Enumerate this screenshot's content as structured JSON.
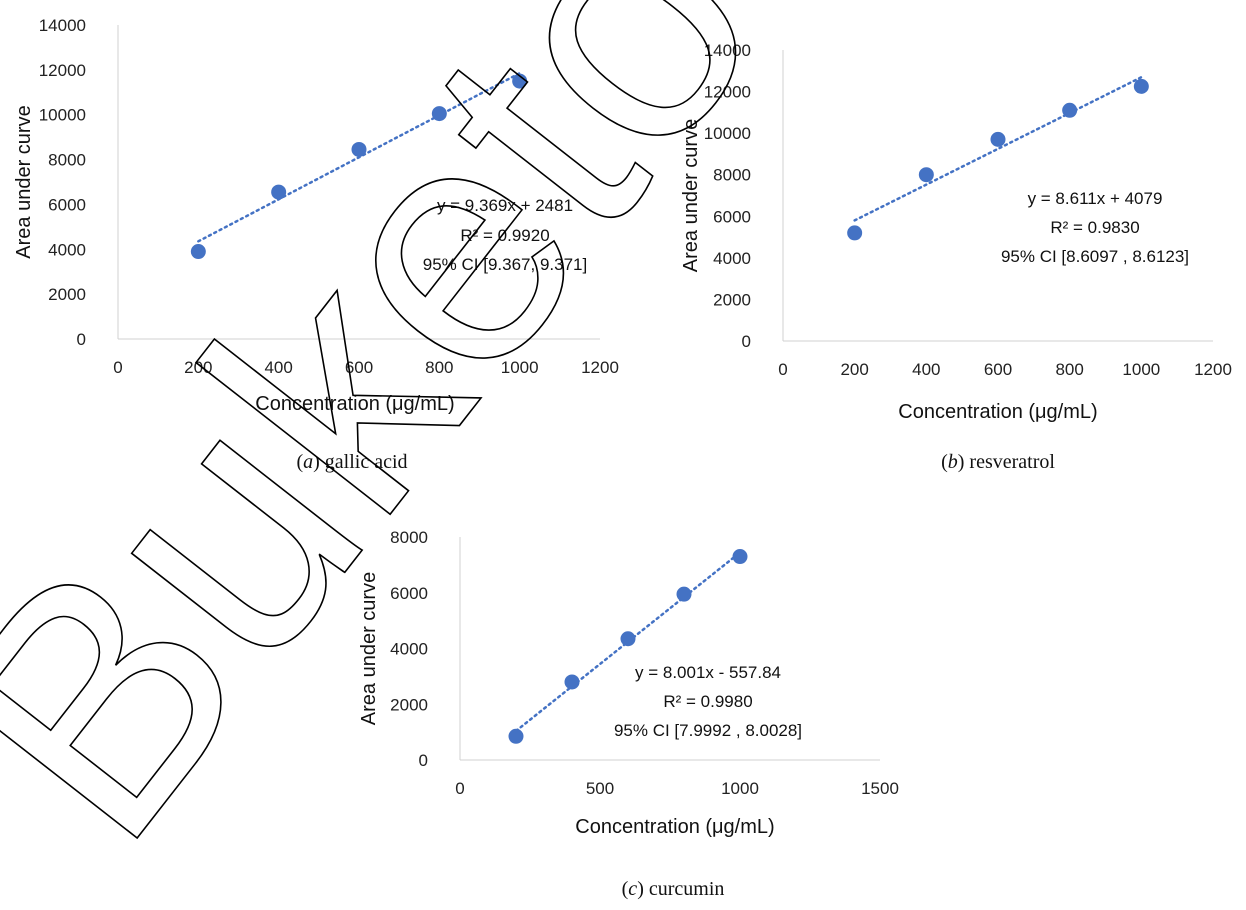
{
  "watermark": "Buketov Uni",
  "colors": {
    "point": "#4472C4",
    "trend": "#4472C4",
    "axis": "#d0d0d0"
  },
  "chart_data": [
    {
      "type": "scatter",
      "xlabel": "Concentration (μg/mL)",
      "ylabel": "Area under curve",
      "xlim": [
        0,
        1200
      ],
      "ylim": [
        0,
        14000
      ],
      "xticks": [
        0,
        200,
        400,
        600,
        800,
        1000,
        1200
      ],
      "yticks": [
        0,
        2000,
        4000,
        6000,
        8000,
        10000,
        12000,
        14000
      ],
      "x": [
        200,
        400,
        600,
        800,
        1000
      ],
      "y": [
        3900,
        6550,
        8450,
        10050,
        11500
      ],
      "trendline": {
        "slope": 9.369,
        "intercept": 2481
      },
      "annotation": [
        "y = 9.369x + 2481",
        "R² = 0.9920",
        "95% CI [9.367, 9.371]"
      ],
      "caption_letter": "a",
      "caption_text": "gallic acid",
      "grid": false
    },
    {
      "type": "scatter",
      "xlabel": "Concentration (μg/mL)",
      "ylabel": "Area under curve",
      "xlim": [
        0,
        1200
      ],
      "ylim": [
        0,
        14000
      ],
      "xticks": [
        0,
        200,
        400,
        600,
        800,
        1000,
        1200
      ],
      "yticks": [
        0,
        2000,
        4000,
        6000,
        8000,
        10000,
        12000,
        14000
      ],
      "x": [
        200,
        400,
        600,
        800,
        1000
      ],
      "y": [
        5200,
        8000,
        9700,
        11100,
        12250
      ],
      "trendline": {
        "slope": 8.611,
        "intercept": 4079
      },
      "annotation": [
        "y = 8.611x + 4079",
        "R² = 0.9830",
        "95% CI [8.6097 , 8.6123]"
      ],
      "caption_letter": "b",
      "caption_text": "resveratrol",
      "grid": false
    },
    {
      "type": "scatter",
      "xlabel": "Concentration (μg/mL)",
      "ylabel": "Area under curve",
      "xlim": [
        0,
        1500
      ],
      "ylim": [
        0,
        8000
      ],
      "xticks": [
        0,
        500,
        1000,
        1500
      ],
      "yticks": [
        0,
        2000,
        4000,
        6000,
        8000
      ],
      "x": [
        200,
        400,
        600,
        800,
        1000
      ],
      "y": [
        850,
        2800,
        4350,
        5950,
        7300
      ],
      "trendline": {
        "slope": 8.001,
        "intercept": -557.84
      },
      "annotation": [
        "y = 8.001x - 557.84",
        "R² = 0.9980",
        "95% CI [7.9992 , 8.0028]"
      ],
      "caption_letter": "c",
      "caption_text": "curcumin",
      "grid": false
    }
  ]
}
